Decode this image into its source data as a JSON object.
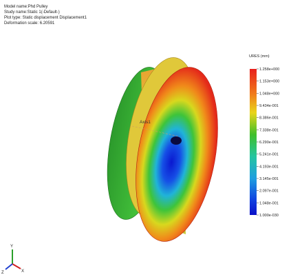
{
  "header": {
    "lines": [
      "Model name:Phd Pulley",
      "Study name:Static 1(-Default-)",
      "Plot type: Static displacement Displacement1",
      "Deformation scale: 6.20591"
    ]
  },
  "legend": {
    "title": "URES (mm)",
    "labels": [
      "1.258e+000",
      "1.153e+000",
      "1.048e+000",
      "9.434e-001",
      "8.386e-001",
      "7.338e-001",
      "6.290e-001",
      "5.241e-001",
      "4.193e-001",
      "3.145e-001",
      "2.097e-001",
      "1.048e-001",
      "1.000e-030"
    ]
  },
  "model": {
    "axis_label": "Axis1"
  },
  "triad": {
    "x": "X",
    "y": "Y",
    "z": "Z"
  }
}
